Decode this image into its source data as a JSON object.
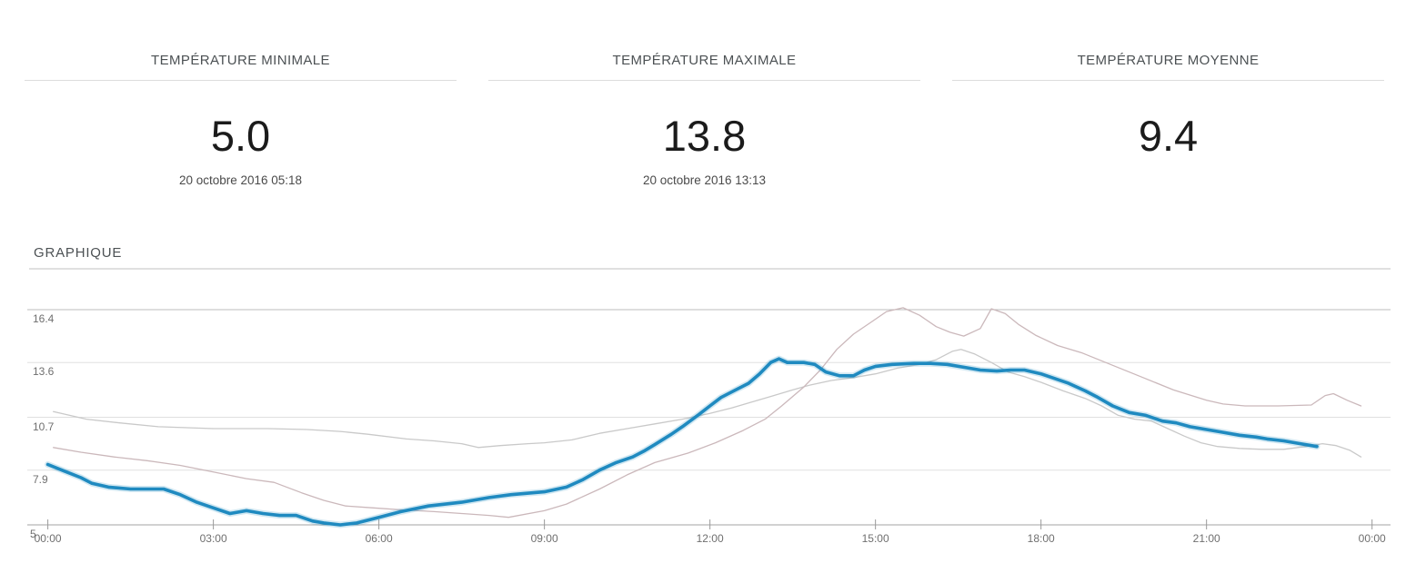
{
  "stats": [
    {
      "label": "TEMPÉRATURE MINIMALE",
      "value": "5.0",
      "timestamp": "20 octobre 2016 05:18"
    },
    {
      "label": "TEMPÉRATURE MAXIMALE",
      "value": "13.8",
      "timestamp": "20 octobre 2016 13:13"
    },
    {
      "label": "TEMPÉRATURE MOYENNE",
      "value": "9.4",
      "timestamp": ""
    }
  ],
  "section": {
    "title": "GRAPHIQUE"
  },
  "colors": {
    "accent_blue": "#1f8ac0",
    "blue_halo": "rgba(31,138,192,0.20)",
    "series_gray": "#c9c9c9",
    "series_rose_gray": "#cbb8bb",
    "grid": "#e0e0e0",
    "grid_top": "#bdbdbd",
    "axis": "#a3a3a3",
    "tick": "#9a9a9a",
    "label_text": "#6f6f6f"
  },
  "chart_data": {
    "type": "line",
    "title": "GRAPHIQUE",
    "xlabel": "",
    "ylabel": "",
    "grid": true,
    "legend": "none",
    "x_unit": "hours",
    "xlim_hours": [
      0,
      24
    ],
    "ylim": [
      5,
      16.4
    ],
    "y_ticks": [
      5,
      7.9,
      10.7,
      13.6,
      16.4
    ],
    "y_tick_labels": [
      "5",
      "7.9",
      "10.7",
      "13.6",
      "16.4"
    ],
    "x_tick_hours": [
      0,
      3,
      6,
      9,
      12,
      15,
      18,
      21,
      24
    ],
    "x_tick_labels": [
      "00:00",
      "03:00",
      "06:00",
      "09:00",
      "12:00",
      "15:00",
      "18:00",
      "21:00",
      "00:00"
    ],
    "series": [
      {
        "name": "comparison-gray",
        "color": "#c9c9c9",
        "width": 1.3,
        "points": [
          [
            0.1,
            11.0
          ],
          [
            0.7,
            10.6
          ],
          [
            1.3,
            10.4
          ],
          [
            2.0,
            10.2
          ],
          [
            3.0,
            10.1
          ],
          [
            4.0,
            10.1
          ],
          [
            4.7,
            10.05
          ],
          [
            5.3,
            9.95
          ],
          [
            5.8,
            9.8
          ],
          [
            6.5,
            9.55
          ],
          [
            7.0,
            9.45
          ],
          [
            7.5,
            9.3
          ],
          [
            7.8,
            9.1
          ],
          [
            8.2,
            9.2
          ],
          [
            8.7,
            9.3
          ],
          [
            9.0,
            9.35
          ],
          [
            9.5,
            9.5
          ],
          [
            10.0,
            9.85
          ],
          [
            10.5,
            10.1
          ],
          [
            11.0,
            10.35
          ],
          [
            11.5,
            10.6
          ],
          [
            12.0,
            10.9
          ],
          [
            12.4,
            11.2
          ],
          [
            12.75,
            11.5
          ],
          [
            13.1,
            11.8
          ],
          [
            13.5,
            12.15
          ],
          [
            13.8,
            12.4
          ],
          [
            14.2,
            12.65
          ],
          [
            14.6,
            12.8
          ],
          [
            15.0,
            13.0
          ],
          [
            15.4,
            13.3
          ],
          [
            15.8,
            13.5
          ],
          [
            16.1,
            13.75
          ],
          [
            16.4,
            14.2
          ],
          [
            16.55,
            14.3
          ],
          [
            16.8,
            14.05
          ],
          [
            17.1,
            13.6
          ],
          [
            17.4,
            13.1
          ],
          [
            17.7,
            12.85
          ],
          [
            18.0,
            12.55
          ],
          [
            18.4,
            12.1
          ],
          [
            18.8,
            11.7
          ],
          [
            19.1,
            11.3
          ],
          [
            19.4,
            10.8
          ],
          [
            19.7,
            10.6
          ],
          [
            20.0,
            10.5
          ],
          [
            20.3,
            10.1
          ],
          [
            20.6,
            9.7
          ],
          [
            20.9,
            9.35
          ],
          [
            21.2,
            9.15
          ],
          [
            21.6,
            9.05
          ],
          [
            22.0,
            9.0
          ],
          [
            22.4,
            9.0
          ],
          [
            22.8,
            9.15
          ],
          [
            23.1,
            9.3
          ],
          [
            23.35,
            9.2
          ],
          [
            23.6,
            8.95
          ],
          [
            23.8,
            8.6
          ]
        ]
      },
      {
        "name": "comparison-rose-gray",
        "color": "#cbb8bb",
        "width": 1.3,
        "points": [
          [
            0.1,
            9.1
          ],
          [
            0.6,
            8.85
          ],
          [
            1.2,
            8.6
          ],
          [
            1.8,
            8.4
          ],
          [
            2.4,
            8.15
          ],
          [
            3.0,
            7.8
          ],
          [
            3.6,
            7.45
          ],
          [
            4.1,
            7.25
          ],
          [
            4.6,
            6.7
          ],
          [
            5.0,
            6.3
          ],
          [
            5.4,
            6.0
          ],
          [
            5.9,
            5.9
          ],
          [
            6.4,
            5.8
          ],
          [
            7.0,
            5.7
          ],
          [
            7.5,
            5.6
          ],
          [
            8.0,
            5.5
          ],
          [
            8.35,
            5.4
          ],
          [
            9.0,
            5.75
          ],
          [
            9.4,
            6.1
          ],
          [
            10.0,
            6.9
          ],
          [
            10.5,
            7.65
          ],
          [
            11.0,
            8.3
          ],
          [
            11.6,
            8.8
          ],
          [
            12.1,
            9.35
          ],
          [
            12.6,
            10.0
          ],
          [
            13.0,
            10.6
          ],
          [
            13.3,
            11.3
          ],
          [
            13.7,
            12.3
          ],
          [
            14.0,
            13.2
          ],
          [
            14.3,
            14.3
          ],
          [
            14.6,
            15.1
          ],
          [
            14.9,
            15.7
          ],
          [
            15.2,
            16.3
          ],
          [
            15.5,
            16.5
          ],
          [
            15.8,
            16.1
          ],
          [
            16.1,
            15.5
          ],
          [
            16.35,
            15.2
          ],
          [
            16.6,
            15.0
          ],
          [
            16.9,
            15.4
          ],
          [
            17.1,
            16.45
          ],
          [
            17.35,
            16.2
          ],
          [
            17.6,
            15.6
          ],
          [
            17.9,
            15.05
          ],
          [
            18.3,
            14.5
          ],
          [
            18.75,
            14.1
          ],
          [
            19.3,
            13.45
          ],
          [
            19.85,
            12.8
          ],
          [
            20.4,
            12.15
          ],
          [
            21.0,
            11.6
          ],
          [
            21.3,
            11.4
          ],
          [
            21.7,
            11.3
          ],
          [
            22.3,
            11.3
          ],
          [
            22.9,
            11.35
          ],
          [
            23.15,
            11.85
          ],
          [
            23.3,
            11.95
          ],
          [
            23.55,
            11.6
          ],
          [
            23.8,
            11.3
          ]
        ]
      },
      {
        "name": "temperature-main",
        "color": "#1f8ac0",
        "width": 3.6,
        "halo": "rgba(31,138,192,0.20)",
        "points": [
          [
            0,
            8.2
          ],
          [
            0.3,
            7.85
          ],
          [
            0.6,
            7.5
          ],
          [
            0.8,
            7.2
          ],
          [
            1.1,
            7.0
          ],
          [
            1.5,
            6.9
          ],
          [
            2.1,
            6.9
          ],
          [
            2.4,
            6.6
          ],
          [
            2.7,
            6.2
          ],
          [
            3.0,
            5.9
          ],
          [
            3.3,
            5.6
          ],
          [
            3.6,
            5.75
          ],
          [
            3.9,
            5.6
          ],
          [
            4.2,
            5.5
          ],
          [
            4.5,
            5.5
          ],
          [
            4.8,
            5.2
          ],
          [
            5.0,
            5.1
          ],
          [
            5.3,
            5.0
          ],
          [
            5.6,
            5.1
          ],
          [
            6.0,
            5.4
          ],
          [
            6.4,
            5.7
          ],
          [
            6.9,
            6.0
          ],
          [
            7.5,
            6.2
          ],
          [
            8.0,
            6.45
          ],
          [
            8.4,
            6.6
          ],
          [
            9.0,
            6.75
          ],
          [
            9.4,
            7.0
          ],
          [
            9.7,
            7.4
          ],
          [
            10.0,
            7.9
          ],
          [
            10.3,
            8.3
          ],
          [
            10.6,
            8.6
          ],
          [
            10.8,
            8.9
          ],
          [
            11.0,
            9.25
          ],
          [
            11.3,
            9.8
          ],
          [
            11.5,
            10.2
          ],
          [
            11.8,
            10.85
          ],
          [
            12.0,
            11.3
          ],
          [
            12.2,
            11.75
          ],
          [
            12.5,
            12.2
          ],
          [
            12.7,
            12.5
          ],
          [
            12.9,
            13.0
          ],
          [
            13.1,
            13.6
          ],
          [
            13.25,
            13.8
          ],
          [
            13.4,
            13.6
          ],
          [
            13.7,
            13.6
          ],
          [
            13.9,
            13.5
          ],
          [
            14.1,
            13.1
          ],
          [
            14.35,
            12.9
          ],
          [
            14.6,
            12.9
          ],
          [
            14.8,
            13.2
          ],
          [
            15.0,
            13.4
          ],
          [
            15.3,
            13.5
          ],
          [
            15.7,
            13.55
          ],
          [
            16.0,
            13.55
          ],
          [
            16.3,
            13.5
          ],
          [
            16.6,
            13.35
          ],
          [
            16.9,
            13.2
          ],
          [
            17.2,
            13.15
          ],
          [
            17.45,
            13.2
          ],
          [
            17.7,
            13.2
          ],
          [
            18.0,
            13.0
          ],
          [
            18.2,
            12.8
          ],
          [
            18.5,
            12.5
          ],
          [
            18.8,
            12.1
          ],
          [
            19.0,
            11.8
          ],
          [
            19.3,
            11.3
          ],
          [
            19.6,
            10.95
          ],
          [
            19.9,
            10.8
          ],
          [
            20.2,
            10.5
          ],
          [
            20.45,
            10.4
          ],
          [
            20.7,
            10.2
          ],
          [
            21.0,
            10.05
          ],
          [
            21.3,
            9.9
          ],
          [
            21.6,
            9.75
          ],
          [
            21.9,
            9.65
          ],
          [
            22.1,
            9.55
          ],
          [
            22.4,
            9.45
          ],
          [
            22.7,
            9.3
          ],
          [
            23.0,
            9.15
          ]
        ]
      }
    ]
  }
}
